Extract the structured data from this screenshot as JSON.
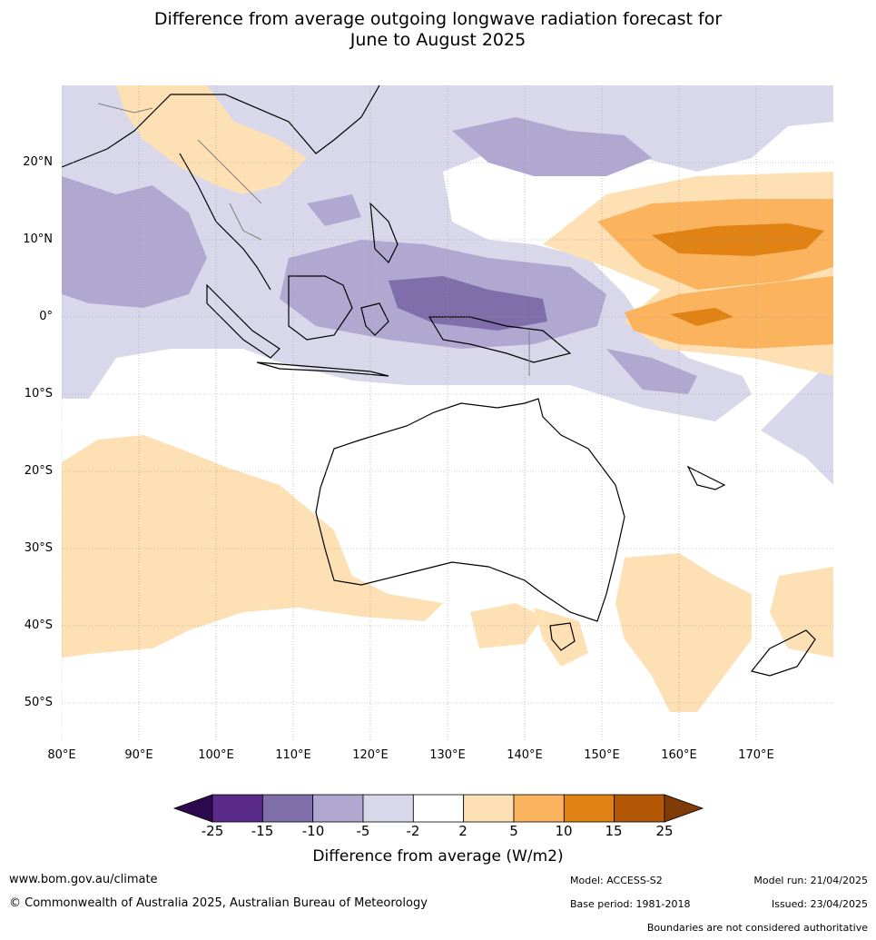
{
  "title": {
    "line1": "Difference from average outgoing longwave radiation forecast for",
    "line2": "June to August 2025"
  },
  "map": {
    "lat_labels": [
      "20°N",
      "10°N",
      "0°",
      "10°S",
      "20°S",
      "30°S",
      "40°S",
      "50°S"
    ],
    "lon_labels": [
      "80°E",
      "90°E",
      "100°E",
      "110°E",
      "120°E",
      "130°E",
      "140°E",
      "150°E",
      "160°E",
      "170°E"
    ]
  },
  "colorbar": {
    "tick_labels": [
      "-25",
      "-15",
      "-10",
      "-5",
      "-2",
      "2",
      "5",
      "10",
      "15",
      "25"
    ],
    "colors": [
      "#2d0a4f",
      "#5a2a8a",
      "#7f6eaa",
      "#b0a8d0",
      "#d9d8ea",
      "#ffffff",
      "#fde0b4",
      "#fbb35e",
      "#e08214",
      "#b35806",
      "#7f3b08"
    ],
    "label": "Difference from average (W/m2)"
  },
  "footer": {
    "website": "www.bom.gov.au/climate",
    "copyright": "© Commonwealth of Australia 2025, Australian Bureau of Meteorology",
    "model": "Model: ACCESS-S2",
    "base_period": "Base period: 1981-2018",
    "model_run": "Model run: 21/04/2025",
    "issued": "Issued: 23/04/2025",
    "disclaimer": "Boundaries are not considered authoritative"
  }
}
